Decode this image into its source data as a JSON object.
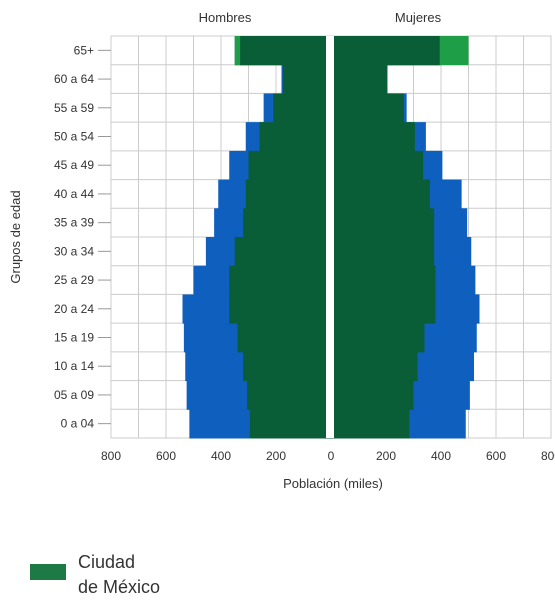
{
  "chart_data": {
    "type": "bar",
    "orientation": "population-pyramid",
    "panels": [
      "Hombres",
      "Mujeres"
    ],
    "xlabel": "Población (miles)",
    "ylabel": "Grupos de edad",
    "xlim": [
      0,
      800
    ],
    "xticks": [
      800,
      600,
      400,
      200,
      0,
      200,
      400,
      600,
      800
    ],
    "grid": true,
    "categories": [
      "0 a 04",
      "05 a 09",
      "10 a 14",
      "15 a 19",
      "20 a 24",
      "25 a 29",
      "30 a 34",
      "35 a 39",
      "40 a 44",
      "45 a 49",
      "50 a 54",
      "55 a 59",
      "60 a 64",
      "65+"
    ],
    "series": [
      {
        "name": "Ciudad de México",
        "color": "#0a5e37",
        "hombres": [
          295,
          305,
          320,
          340,
          370,
          370,
          350,
          320,
          310,
          300,
          260,
          210,
          175,
          330
        ],
        "mujeres": [
          285,
          300,
          315,
          340,
          380,
          380,
          375,
          375,
          360,
          335,
          305,
          265,
          205,
          395
        ]
      },
      {
        "color": "#0f5fbe",
        "hombres": [
          515,
          525,
          530,
          535,
          540,
          500,
          455,
          425,
          410,
          370,
          310,
          245,
          180,
          350
        ],
        "mujeres": [
          490,
          505,
          520,
          530,
          540,
          525,
          510,
          495,
          475,
          405,
          345,
          275,
          205,
          400
        ]
      },
      {
        "color": "#1e9e46",
        "hombres": [
          0,
          0,
          0,
          0,
          0,
          0,
          0,
          0,
          0,
          0,
          0,
          0,
          0,
          350
        ],
        "mujeres": [
          0,
          0,
          0,
          0,
          0,
          0,
          0,
          0,
          0,
          0,
          0,
          0,
          0,
          500
        ]
      }
    ]
  },
  "legend": {
    "label": "Ciudad\nde México",
    "color": "#1e7a44"
  }
}
